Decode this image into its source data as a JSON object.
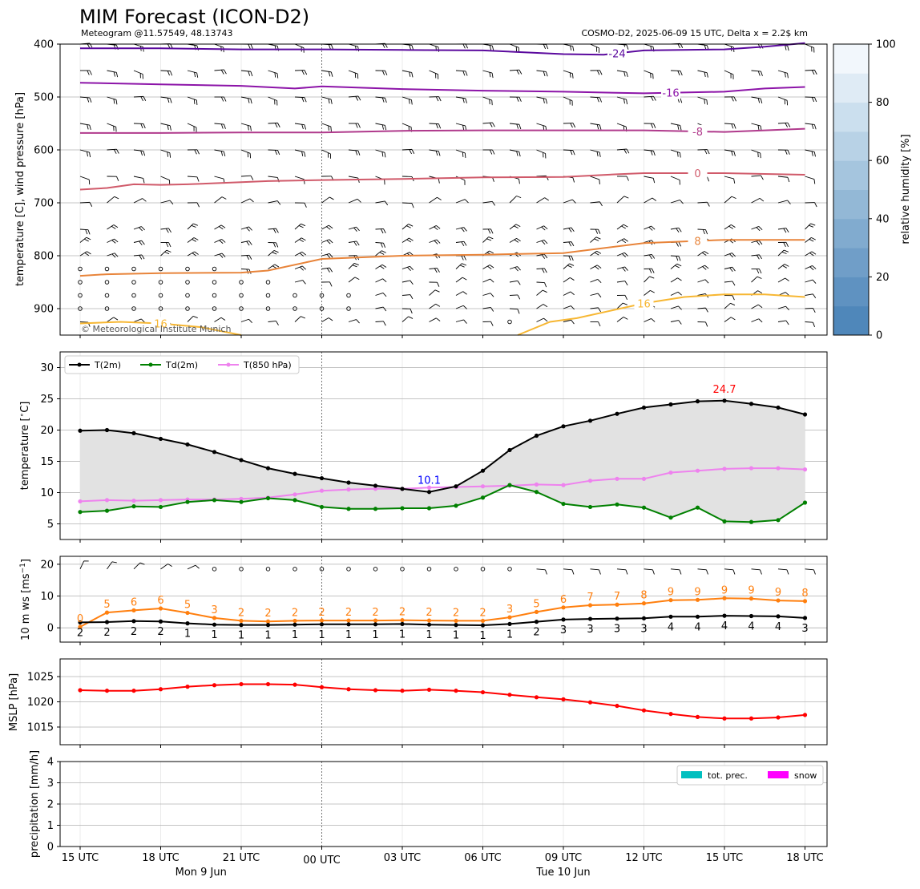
{
  "header": {
    "title": "MIM Forecast (ICON-D2)",
    "subtitle_left": "Meteogram @11.57549, 48.13743",
    "subtitle_right": "COSMO-D2, 2025-06-09 15 UTC, Delta x = 2.2$ km",
    "copyright": "© Meteorological Institute Munich"
  },
  "x_axis": {
    "ticks": [
      "15 UTC",
      "18 UTC",
      "21 UTC",
      "00 UTC",
      "03 UTC",
      "06 UTC",
      "09 UTC",
      "12 UTC",
      "15 UTC",
      "18 UTC"
    ],
    "day_labels": [
      "Mon 9 Jun",
      "Tue 10 Jun"
    ]
  },
  "colors": {
    "t2m": "#000000",
    "td2m": "#008000",
    "t850": "#ee82ee",
    "ws": "#ff7f0e",
    "mslp": "#ff0000",
    "tot_prec": "#00bfbf",
    "snow": "#ff00ff",
    "label_max": "#ff0000",
    "label_min": "#0000ff"
  },
  "chart_data": [
    {
      "type": "contour",
      "name": "upper-air",
      "ylabel": "temperature [C], wind pressure [hPa]",
      "ylim": [
        950,
        400
      ],
      "y_ticks": [
        "400",
        "500",
        "600",
        "700",
        "800",
        "900"
      ],
      "colorbar": {
        "label": "relative humidity [%]",
        "ticks": [
          "0",
          "20",
          "40",
          "60",
          "80",
          "100"
        ],
        "colors": [
          "#4f87ba",
          "#5f92c1",
          "#709ec8",
          "#81abcf",
          "#93b8d6",
          "#a5c5de",
          "#b8d2e6",
          "#cbdfee",
          "#dfebf5",
          "#f2f7fc"
        ]
      },
      "isotherms": [
        {
          "label": "-24",
          "color": "#5b0a9e",
          "label_x": 20,
          "x": [
            0,
            3,
            6,
            9,
            12,
            15,
            18,
            19.5,
            21,
            24,
            25.5,
            27
          ],
          "p": [
            408,
            408,
            410,
            410,
            411,
            412,
            419,
            420,
            412,
            410,
            405,
            398
          ]
        },
        {
          "label": "-16",
          "color": "#8c14a8",
          "label_x": 22,
          "x": [
            0,
            3,
            6,
            8,
            9,
            12,
            15,
            18,
            21,
            24,
            25.5,
            27
          ],
          "p": [
            473,
            476,
            479,
            484,
            480,
            485,
            488,
            490,
            493,
            490,
            484,
            481
          ]
        },
        {
          "label": "-8",
          "color": "#b03a8c",
          "label_x": 23,
          "x": [
            0,
            3,
            6,
            9,
            12,
            15,
            18,
            21,
            24,
            27
          ],
          "p": [
            568,
            568,
            567,
            567,
            564,
            563,
            563,
            563,
            566,
            560
          ]
        },
        {
          "label": "0",
          "color": "#d05a6a",
          "label_x": 23,
          "x": [
            0,
            1,
            2,
            3,
            4,
            6,
            7,
            9,
            12,
            15,
            18,
            20,
            21,
            24,
            27
          ],
          "p": [
            675,
            672,
            665,
            666,
            665,
            661,
            659,
            657,
            655,
            652,
            651,
            646,
            644,
            644,
            647
          ]
        },
        {
          "label": "8",
          "color": "#e8843a",
          "label_x": 23,
          "x": [
            0,
            1,
            3,
            6,
            7,
            9,
            12,
            15,
            18,
            21,
            24,
            27
          ],
          "p": [
            838,
            835,
            833,
            832,
            828,
            806,
            800,
            798,
            795,
            776,
            770,
            770
          ]
        },
        {
          "label": "16",
          "color": "#f7b733",
          "label_x": 21,
          "x": [
            16.3,
            17.5,
            18.5,
            21,
            22.5,
            24,
            25.5,
            27
          ],
          "p": [
            950,
            925,
            918,
            890,
            878,
            873,
            873,
            878
          ]
        },
        {
          "label": "16",
          "color": "#f7b733",
          "label_x": 3,
          "x": [
            0,
            1.5,
            3,
            4.5,
            6
          ],
          "p": [
            928,
            925,
            928,
            935,
            950
          ]
        }
      ],
      "barb_levels": [
        400,
        450,
        500,
        550,
        600,
        650,
        700,
        750,
        775,
        800,
        825,
        850,
        875,
        900,
        925
      ],
      "calm_points": [
        [
          0,
          825
        ],
        [
          1,
          825
        ],
        [
          2,
          825
        ],
        [
          3,
          825
        ],
        [
          4,
          825
        ],
        [
          5,
          825
        ],
        [
          0,
          850
        ],
        [
          1,
          850
        ],
        [
          2,
          850
        ],
        [
          3,
          850
        ],
        [
          4,
          850
        ],
        [
          5,
          850
        ],
        [
          6,
          850
        ],
        [
          7,
          850
        ],
        [
          0,
          875
        ],
        [
          1,
          875
        ],
        [
          2,
          875
        ],
        [
          3,
          875
        ],
        [
          4,
          875
        ],
        [
          5,
          875
        ],
        [
          6,
          875
        ],
        [
          7,
          875
        ],
        [
          8,
          875
        ],
        [
          9,
          875
        ],
        [
          10,
          875
        ],
        [
          0,
          900
        ],
        [
          1,
          900
        ],
        [
          2,
          900
        ],
        [
          3,
          900
        ],
        [
          4,
          900
        ],
        [
          5,
          900
        ],
        [
          6,
          900
        ],
        [
          7,
          900
        ],
        [
          8,
          900
        ],
        [
          9,
          900
        ],
        [
          10,
          900
        ],
        [
          16,
          925
        ]
      ]
    },
    {
      "type": "line",
      "name": "temperature",
      "ylabel": "temperature [$^\\circ$C]",
      "ylim": [
        2.5,
        32.5
      ],
      "y_ticks": [
        "5",
        "10",
        "15",
        "20",
        "25",
        "30"
      ],
      "series": [
        {
          "name": "T(2m)",
          "values": [
            19.9,
            20.0,
            19.5,
            18.6,
            17.7,
            16.5,
            15.2,
            13.9,
            13.0,
            12.3,
            11.6,
            11.1,
            10.6,
            10.1,
            11.0,
            13.5,
            16.8,
            19.1,
            20.6,
            21.5,
            22.6,
            23.6,
            24.1,
            24.6,
            24.7,
            24.2,
            23.6,
            22.5
          ]
        },
        {
          "name": "Td(2m)",
          "values": [
            6.9,
            7.1,
            7.8,
            7.7,
            8.5,
            8.8,
            8.5,
            9.1,
            8.8,
            7.7,
            7.4,
            7.4,
            7.5,
            7.5,
            7.9,
            9.2,
            11.2,
            10.1,
            8.2,
            7.7,
            8.1,
            7.6,
            6.0,
            7.6,
            5.4,
            5.3,
            5.6,
            8.4
          ]
        },
        {
          "name": "T(850 hPa)",
          "values": [
            8.6,
            8.8,
            8.7,
            8.8,
            8.9,
            8.9,
            9.0,
            9.2,
            9.7,
            10.3,
            10.5,
            10.6,
            10.6,
            10.8,
            10.9,
            11.0,
            11.1,
            11.3,
            11.2,
            11.9,
            12.2,
            12.2,
            13.2,
            13.5,
            13.8,
            13.9,
            13.9,
            13.7
          ]
        }
      ],
      "annotations": [
        {
          "text": "24.7",
          "x": 24,
          "y": 24.7,
          "kind": "max"
        },
        {
          "text": "10.1",
          "x": 13,
          "y": 10.1,
          "kind": "min"
        }
      ]
    },
    {
      "type": "line",
      "name": "wind",
      "ylabel": "10 m ws [ms$^{-1}$]",
      "ylim": [
        -4.5,
        22.5
      ],
      "y_ticks": [
        "0",
        "10",
        "20"
      ],
      "series": [
        {
          "name": "gust",
          "values": [
            0.3,
            4.8,
            5.5,
            6.1,
            4.7,
            3.1,
            2.2,
            2.0,
            2.2,
            2.3,
            2.3,
            2.3,
            2.4,
            2.3,
            2.2,
            2.2,
            3.3,
            5.0,
            6.4,
            7.1,
            7.3,
            7.7,
            8.7,
            8.8,
            9.3,
            9.2,
            8.6,
            8.4
          ]
        },
        {
          "name": "ws",
          "values": [
            1.7,
            1.8,
            2.1,
            2.0,
            1.4,
            1.0,
            0.9,
            0.9,
            1.0,
            1.1,
            1.1,
            1.1,
            1.2,
            1.0,
            0.9,
            0.8,
            1.2,
            1.9,
            2.6,
            2.8,
            2.9,
            3.0,
            3.5,
            3.5,
            3.8,
            3.7,
            3.6,
            3.1
          ]
        }
      ],
      "gust_labels": [
        "0",
        "5",
        "6",
        "6",
        "5",
        "3",
        "2",
        "2",
        "2",
        "2",
        "2",
        "2",
        "2",
        "2",
        "2",
        "2",
        "3",
        "5",
        "6",
        "7",
        "7",
        "8",
        "9",
        "9",
        "9",
        "9",
        "9",
        "8"
      ],
      "ws_labels": [
        "2",
        "2",
        "2",
        "2",
        "1",
        "1",
        "1",
        "1",
        "1",
        "1",
        "1",
        "1",
        "1",
        "1",
        "1",
        "1",
        "1",
        "2",
        "3",
        "3",
        "3",
        "3",
        "4",
        "4",
        "4",
        "4",
        "4",
        "3"
      ]
    },
    {
      "type": "line",
      "name": "mslp",
      "ylabel": "MSLP [hPa]",
      "ylim": [
        1011.5,
        1028.5
      ],
      "y_ticks": [
        "1015",
        "1020",
        "1025"
      ],
      "series": [
        {
          "name": "MSLP",
          "values": [
            1022.3,
            1022.2,
            1022.2,
            1022.5,
            1023.0,
            1023.3,
            1023.5,
            1023.5,
            1023.4,
            1022.9,
            1022.5,
            1022.3,
            1022.2,
            1022.4,
            1022.2,
            1021.9,
            1021.4,
            1020.9,
            1020.5,
            1019.9,
            1019.2,
            1018.3,
            1017.6,
            1017.0,
            1016.7,
            1016.7,
            1016.9,
            1017.4
          ]
        }
      ]
    },
    {
      "type": "bar",
      "name": "precipitation",
      "ylabel": "precipitation [mm/h]",
      "ylim": [
        0,
        4
      ],
      "y_ticks": [
        "0",
        "1",
        "2",
        "3",
        "4"
      ],
      "series": [
        {
          "name": "tot. prec.",
          "values": [
            0,
            0,
            0,
            0,
            0,
            0,
            0,
            0,
            0,
            0,
            0,
            0,
            0,
            0,
            0,
            0,
            0,
            0,
            0,
            0,
            0,
            0,
            0,
            0,
            0,
            0,
            0,
            0
          ]
        },
        {
          "name": "snow",
          "values": [
            0,
            0,
            0,
            0,
            0,
            0,
            0,
            0,
            0,
            0,
            0,
            0,
            0,
            0,
            0,
            0,
            0,
            0,
            0,
            0,
            0,
            0,
            0,
            0,
            0,
            0,
            0,
            0
          ]
        }
      ]
    }
  ]
}
